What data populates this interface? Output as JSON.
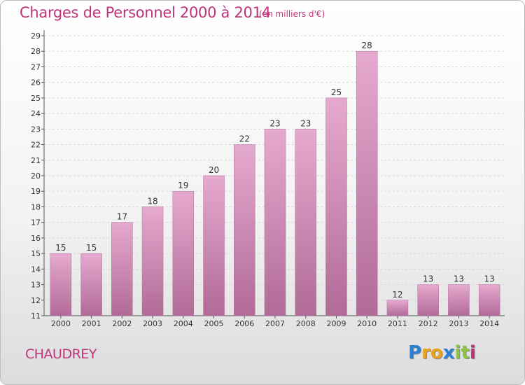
{
  "header": {
    "title": "Charges de Personnel 2000 à 2014",
    "subtitle": "(en milliers d'€)"
  },
  "footer": {
    "place": "CHAUDREY",
    "brand": {
      "letters": [
        "P",
        "r",
        "o",
        "x",
        "i",
        "t",
        "i"
      ],
      "colors": [
        "#2c7fd6",
        "#e8a21c",
        "#e8a21c",
        "#2c7fd6",
        "#8cc63f",
        "#8cc63f",
        "#c0337a"
      ]
    }
  },
  "chart_data": {
    "type": "bar",
    "title": "Charges de Personnel 2000 à 2014",
    "subtitle": "(en milliers d'€)",
    "categories": [
      "2000",
      "2001",
      "2002",
      "2003",
      "2004",
      "2005",
      "2006",
      "2007",
      "2008",
      "2009",
      "2010",
      "2011",
      "2012",
      "2013",
      "2014"
    ],
    "values": [
      15,
      15,
      17,
      18,
      19,
      20,
      22,
      23,
      23,
      25,
      28,
      12,
      13,
      13,
      13
    ],
    "ylim": [
      11,
      29
    ],
    "yticks": [
      11,
      12,
      13,
      14,
      15,
      16,
      17,
      18,
      19,
      20,
      21,
      22,
      23,
      24,
      25,
      26,
      27,
      28,
      29
    ],
    "grid": true,
    "bar_color": "#c97aa8"
  }
}
